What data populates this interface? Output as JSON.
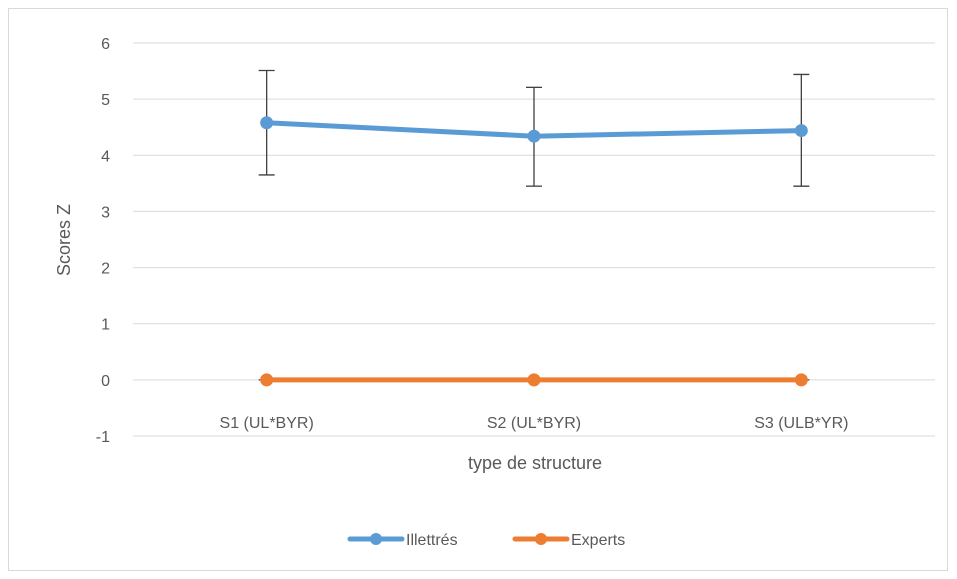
{
  "chart_data": {
    "type": "line",
    "title": "",
    "xlabel": "type de structure",
    "ylabel": "Scores Z",
    "categories": [
      "S1 (UL*BYR)",
      "S2 (UL*BYR)",
      "S3 (ULB*YR)"
    ],
    "ylim": [
      -1,
      6
    ],
    "yticks": [
      -1,
      0,
      1,
      2,
      3,
      4,
      5,
      6
    ],
    "grid": true,
    "legend_position": "bottom",
    "series": [
      {
        "name": "Illettrés",
        "color": "#5b9bd5",
        "values": [
          4.58,
          4.34,
          4.44
        ],
        "error_low": [
          3.65,
          3.45,
          3.45
        ],
        "error_high": [
          5.51,
          5.21,
          5.44
        ]
      },
      {
        "name": "Experts",
        "color": "#ed7d31",
        "values": [
          0,
          0,
          0
        ],
        "error_low": [
          0,
          0,
          0
        ],
        "error_high": [
          0,
          0,
          0
        ]
      }
    ]
  }
}
